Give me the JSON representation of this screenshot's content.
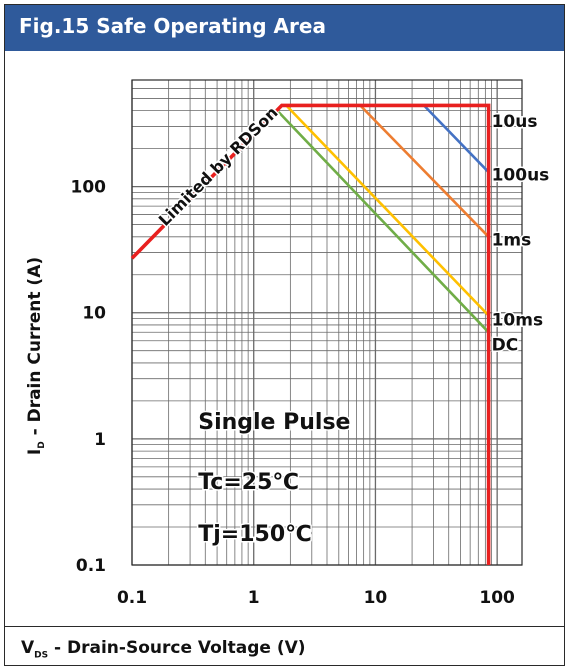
{
  "header": {
    "title": "Fig.15 Safe Operating Area"
  },
  "colors": {
    "header_bg": "#2f5a9b",
    "header_text": "#ffffff"
  },
  "chart_data": {
    "type": "line",
    "title": "Fig.15 Safe Operating Area",
    "xlabel": {
      "main": "V",
      "sub": "DS",
      "rest": " - Drain-Source Voltage (V)"
    },
    "ylabel": {
      "main": "I",
      "sub": "D",
      "rest": " - Drain Current  (A)"
    },
    "xscale": "log",
    "yscale": "log",
    "xlim": [
      0.1,
      160
    ],
    "ylim": [
      0.1,
      700
    ],
    "xticks": [
      0.1,
      1,
      10,
      100
    ],
    "xtick_labels": [
      "0.1",
      "1",
      "10",
      "100"
    ],
    "yticks": [
      0.1,
      1,
      10,
      100
    ],
    "ytick_labels": [
      "0.1",
      "1",
      "10",
      "100"
    ],
    "grid": true,
    "series": [
      {
        "name": "Limited by RDSon",
        "color": "#e8201f",
        "x": [
          0.1,
          1.7,
          85,
          85
        ],
        "y": [
          27,
          440,
          440,
          0.1
        ]
      },
      {
        "name": "10us",
        "color": "#4472c4",
        "x": [
          25,
          85
        ],
        "y": [
          440,
          130
        ]
      },
      {
        "name": "100us",
        "color": "#ed7d31",
        "x": [
          7.5,
          85
        ],
        "y": [
          440,
          40
        ]
      },
      {
        "name": "1ms",
        "color": "#ffc000",
        "x": [
          1.85,
          85
        ],
        "y": [
          440,
          9.5
        ]
      },
      {
        "name": "10ms",
        "color": "#70ad47",
        "x": [
          1.6,
          85
        ],
        "y": [
          390,
          7
        ]
      }
    ],
    "line_labels": [
      {
        "text": "10us",
        "x": 90,
        "y": 330
      },
      {
        "text": "100us",
        "x": 90,
        "y": 125
      },
      {
        "text": "1ms",
        "x": 90,
        "y": 38
      },
      {
        "text": "10ms",
        "x": 90,
        "y": 8.8
      },
      {
        "text": "DC",
        "x": 90,
        "y": 5.6
      }
    ],
    "annotations": [
      {
        "text": "Limited by RDSon",
        "x": 0.55,
        "y": 135,
        "rotation": -45
      },
      {
        "text": "Single Pulse",
        "x": 0.35,
        "y": 1.2
      },
      {
        "text": "Tc=25℃",
        "x": 0.35,
        "y": 0.4
      },
      {
        "text": "Tj=150℃",
        "x": 0.35,
        "y": 0.155
      }
    ]
  }
}
